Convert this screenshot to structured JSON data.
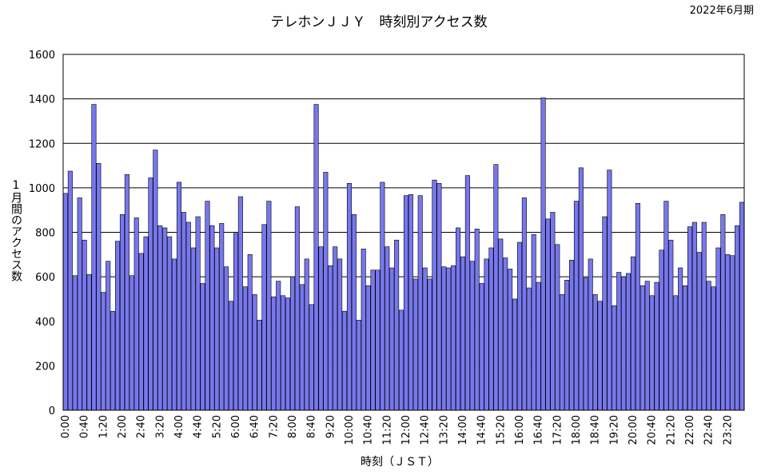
{
  "chart_data": {
    "type": "bar",
    "title": "テレホンＪＪＹ　時刻別アクセス数",
    "period_label": "2022年6月期",
    "xlabel": "時刻（ＪＳＴ）",
    "ylabel": "1月間のアクセス数",
    "ylim": [
      0,
      1600
    ],
    "yticks": [
      "0",
      "200",
      "400",
      "600",
      "800",
      "1000",
      "1200",
      "1400",
      "1600"
    ],
    "grid": true,
    "bar_color": "#7777ee",
    "bar_edge_color": "#000000",
    "tick_labels": [
      "0:00",
      "0:40",
      "1:20",
      "2:00",
      "2:40",
      "3:20",
      "4:00",
      "4:40",
      "5:20",
      "6:00",
      "6:40",
      "7:20",
      "8:00",
      "8:40",
      "9:20",
      "10:00",
      "10:40",
      "11:20",
      "12:00",
      "12:40",
      "13:20",
      "14:00",
      "14:40",
      "15:20",
      "16:00",
      "16:40",
      "17:20",
      "18:00",
      "18:40",
      "19:20",
      "20:00",
      "20:40",
      "21:20",
      "22:00",
      "22:40",
      "23:20"
    ],
    "tick_every": 4,
    "interval_minutes": 10,
    "values": [
      975,
      1075,
      605,
      955,
      765,
      610,
      1375,
      1110,
      530,
      670,
      445,
      760,
      880,
      1060,
      605,
      865,
      705,
      780,
      1045,
      1170,
      830,
      820,
      780,
      680,
      1025,
      890,
      845,
      730,
      870,
      570,
      940,
      830,
      730,
      840,
      645,
      490,
      795,
      960,
      555,
      700,
      520,
      405,
      835,
      940,
      510,
      580,
      515,
      505,
      600,
      915,
      565,
      680,
      475,
      1375,
      735,
      1070,
      650,
      735,
      680,
      445,
      1020,
      880,
      405,
      725,
      560,
      630,
      630,
      1025,
      735,
      640,
      765,
      450,
      965,
      970,
      590,
      965,
      640,
      590,
      1035,
      1020,
      645,
      640,
      650,
      820,
      690,
      1055,
      670,
      815,
      570,
      680,
      730,
      1105,
      770,
      685,
      635,
      500,
      755,
      955,
      550,
      790,
      575,
      1405,
      860,
      890,
      745,
      520,
      585,
      675,
      940,
      1090,
      595,
      680,
      520,
      490,
      870,
      1080,
      470,
      620,
      600,
      615,
      690,
      930,
      560,
      580,
      515,
      575,
      720,
      940,
      765,
      515,
      640,
      560,
      825,
      845,
      710,
      845,
      580,
      555,
      730,
      880,
      700,
      695,
      830,
      935
    ]
  }
}
